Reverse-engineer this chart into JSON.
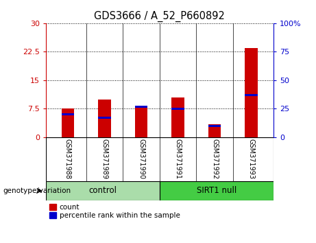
{
  "title": "GDS3666 / A_52_P660892",
  "samples": [
    "GSM371988",
    "GSM371989",
    "GSM371990",
    "GSM371991",
    "GSM371992",
    "GSM371993"
  ],
  "count_values": [
    7.5,
    10.0,
    8.0,
    10.5,
    3.5,
    23.5
  ],
  "percentile_values": [
    20,
    17,
    27,
    25,
    10,
    37
  ],
  "ylim_left": [
    0,
    30
  ],
  "ylim_right": [
    0,
    100
  ],
  "yticks_left": [
    0,
    7.5,
    15,
    22.5,
    30
  ],
  "ytick_labels_left": [
    "0",
    "7.5",
    "15",
    "22.5",
    "30"
  ],
  "yticks_right": [
    0,
    25,
    50,
    75,
    100
  ],
  "ytick_labels_right": [
    "0",
    "25",
    "50",
    "75",
    "100%"
  ],
  "bar_color": "#cc0000",
  "percentile_color": "#0000cc",
  "left_axis_color": "#cc0000",
  "right_axis_color": "#0000cc",
  "control_label": "control",
  "sirt1_label": "SIRT1 null",
  "genotype_label": "genotype/variation",
  "legend_count": "count",
  "legend_percentile": "percentile rank within the sample",
  "xlabel_area_color": "#c8c8c8",
  "control_bg": "#aaddaa",
  "sirt1_bg": "#44cc44",
  "n_control": 3,
  "n_sirt1": 3,
  "bar_width": 0.35,
  "pct_bar_height": 0.55
}
